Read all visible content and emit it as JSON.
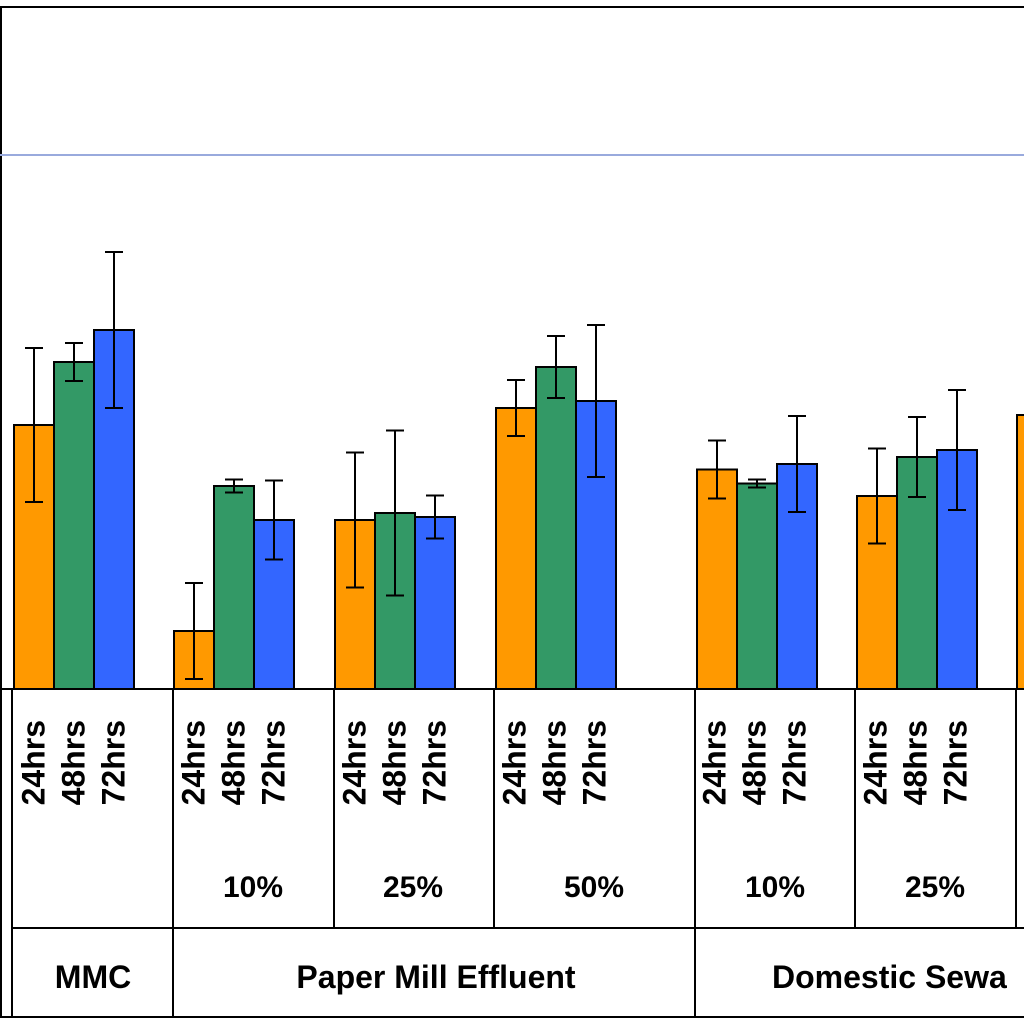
{
  "chart_data": {
    "type": "bar",
    "title": "",
    "xlabel": "",
    "ylabel": "",
    "ylim": [
      0,
      100
    ],
    "grid": false,
    "legend": "none",
    "series_order": [
      "24hrs",
      "48hrs",
      "72hrs"
    ],
    "colors": {
      "24hrs": "#FF9900",
      "48hrs": "#339966",
      "72hrs": "#3366FF"
    },
    "top_rule_color": "#99AADD",
    "categories": [
      {
        "category": "MMC",
        "level": "",
        "bars": [
          {
            "value": 52.8,
            "err": 15.4
          },
          {
            "value": 65.4,
            "err": 3.8
          },
          {
            "value": 71.8,
            "err": 15.6
          }
        ]
      },
      {
        "category": "Paper Mill Effluent",
        "level": "10%",
        "bars": [
          {
            "value": 11.6,
            "err": 9.6
          },
          {
            "value": 40.6,
            "err": 1.3
          },
          {
            "value": 33.8,
            "err": 7.9
          }
        ]
      },
      {
        "category": "Paper Mill Effluent",
        "level": "25%",
        "bars": [
          {
            "value": 33.8,
            "err": 13.5
          },
          {
            "value": 35.2,
            "err": 16.5
          },
          {
            "value": 34.4,
            "err": 4.3
          }
        ]
      },
      {
        "category": "Paper Mill Effluent",
        "level": "50%",
        "bars": [
          {
            "value": 56.2,
            "err": 5.6
          },
          {
            "value": 64.4,
            "err": 6.2
          },
          {
            "value": 57.6,
            "err": 15.2
          }
        ]
      },
      {
        "category": "Domestic Sewa",
        "level": "10%",
        "bars": [
          {
            "value": 43.9,
            "err": 5.8
          },
          {
            "value": 41.1,
            "err": 0.8
          },
          {
            "value": 45.0,
            "err": 9.6
          }
        ]
      },
      {
        "category": "Domestic Sewa",
        "level": "25%",
        "bars": [
          {
            "value": 38.6,
            "err": 9.5
          },
          {
            "value": 46.4,
            "err": 8.0
          },
          {
            "value": 47.8,
            "err": 12.0
          }
        ]
      },
      {
        "category": "Domestic Sewa",
        "level": "",
        "bars": [
          {
            "value": 54.8,
            "err": 0
          }
        ]
      }
    ],
    "category_labels": [
      "MMC",
      "Paper Mill Effluent",
      "Domestic Sewa"
    ],
    "level_labels": [
      "10%",
      "25%",
      "50%",
      "10%",
      "25%"
    ]
  }
}
